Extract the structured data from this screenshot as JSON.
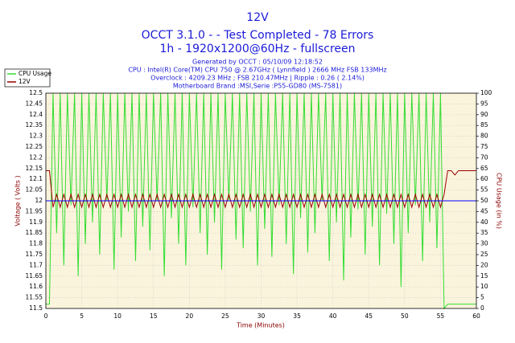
{
  "chart_data": {
    "type": "line",
    "title": "12V",
    "subtitle": [
      "OCCT 3.1.0 -  - Test Completed - 78 Errors",
      "1h - 1920x1200@60Hz - fullscreen"
    ],
    "info": [
      "Generated by OCCT : 05/10/09 12:18:52",
      "CPU : Intel(R) Core(TM) CPU 750 @ 2.67GHz ( Lynnfield ) 2666 MHz FSB 133MHz",
      "Overclock : 4209.23 MHz ; FSB 210.47MHz | Ripple : 0.26 ( 2.14%)",
      "Motherboard Brand :MSI,Serie :P55-GD80 (MS-7581)"
    ],
    "xlabel": "Time (Minutes)",
    "ylabel": "Voltage ( Volts )",
    "y2label": "CPU Usage (in %)",
    "x": [
      0,
      0.5,
      1,
      1.5,
      2,
      2.5,
      3,
      3.5,
      4,
      4.5,
      5,
      5.5,
      6,
      6.5,
      7,
      7.5,
      8,
      8.5,
      9,
      9.5,
      10,
      10.5,
      11,
      11.5,
      12,
      12.5,
      13,
      13.5,
      14,
      14.5,
      15,
      15.5,
      16,
      16.5,
      17,
      17.5,
      18,
      18.5,
      19,
      19.5,
      20,
      20.5,
      21,
      21.5,
      22,
      22.5,
      23,
      23.5,
      24,
      24.5,
      25,
      25.5,
      26,
      26.5,
      27,
      27.5,
      28,
      28.5,
      29,
      29.5,
      30,
      30.5,
      31,
      31.5,
      32,
      32.5,
      33,
      33.5,
      34,
      34.5,
      35,
      35.5,
      36,
      36.5,
      37,
      37.5,
      38,
      38.5,
      39,
      39.5,
      40,
      40.5,
      41,
      41.5,
      42,
      42.5,
      43,
      43.5,
      44,
      44.5,
      45,
      45.5,
      46,
      46.5,
      47,
      47.5,
      48,
      48.5,
      49,
      49.5,
      50,
      50.5,
      51,
      51.5,
      52,
      52.5,
      53,
      53.5,
      54,
      54.5,
      55,
      55.5,
      56,
      56.5,
      57,
      57.5,
      58,
      58.5,
      59,
      59.5,
      60
    ],
    "series": [
      {
        "name": "CPU Usage",
        "color": "#33dd33",
        "axis": "y2",
        "values": [
          2,
          2,
          100,
          35,
          100,
          20,
          100,
          48,
          100,
          15,
          100,
          30,
          100,
          40,
          100,
          25,
          100,
          50,
          100,
          18,
          100,
          33,
          100,
          45,
          100,
          22,
          100,
          38,
          100,
          27,
          100,
          50,
          100,
          15,
          100,
          42,
          100,
          30,
          100,
          20,
          100,
          47,
          100,
          35,
          100,
          25,
          100,
          40,
          100,
          18,
          100,
          50,
          100,
          32,
          100,
          28,
          100,
          45,
          100,
          20,
          100,
          37,
          100,
          24,
          100,
          48,
          100,
          30,
          100,
          16,
          100,
          42,
          100,
          26,
          100,
          35,
          100,
          50,
          100,
          22,
          100,
          40,
          100,
          13,
          100,
          33,
          100,
          46,
          100,
          25,
          100,
          38,
          100,
          20,
          100,
          44,
          100,
          30,
          100,
          10,
          100,
          35,
          100,
          48,
          100,
          22,
          100,
          40,
          100,
          28,
          100,
          0,
          2,
          2,
          2,
          2,
          2,
          2,
          2,
          2,
          2
        ]
      },
      {
        "name": "12V",
        "color": "#990000",
        "values": [
          12.14,
          12.14,
          11.97,
          12.03,
          11.97,
          12.03,
          11.97,
          12.03,
          11.97,
          12.03,
          11.97,
          12.03,
          11.97,
          12.03,
          11.97,
          12.03,
          11.97,
          12.03,
          11.97,
          12.03,
          11.97,
          12.03,
          11.97,
          12.03,
          11.97,
          12.03,
          11.97,
          12.03,
          11.97,
          12.03,
          11.97,
          12.03,
          11.97,
          12.03,
          11.97,
          12.03,
          11.97,
          12.03,
          11.97,
          12.03,
          11.97,
          12.03,
          11.97,
          12.03,
          11.97,
          12.03,
          11.97,
          12.03,
          11.97,
          12.03,
          11.97,
          12.03,
          11.97,
          12.03,
          11.97,
          12.03,
          11.97,
          12.03,
          11.97,
          12.03,
          11.97,
          12.03,
          11.97,
          12.03,
          11.97,
          12.03,
          11.97,
          12.03,
          11.97,
          12.03,
          11.97,
          12.03,
          11.97,
          12.03,
          11.97,
          12.03,
          11.97,
          12.03,
          11.97,
          12.03,
          11.97,
          12.03,
          11.97,
          12.03,
          11.97,
          12.03,
          11.97,
          12.03,
          11.97,
          12.03,
          11.97,
          12.03,
          11.97,
          12.03,
          11.97,
          12.03,
          11.97,
          12.03,
          11.97,
          12.03,
          11.97,
          12.03,
          11.97,
          12.03,
          11.97,
          12.03,
          11.97,
          12.03,
          11.97,
          12.03,
          11.97,
          12.03,
          12.14,
          12.14,
          12.12,
          12.14,
          12.14,
          12.14,
          12.14,
          12.14,
          12.14
        ]
      }
    ],
    "hline": {
      "value": 12,
      "color": "#0000ff"
    },
    "xlim": [
      0,
      60
    ],
    "xticks": [
      0,
      5,
      10,
      15,
      20,
      25,
      30,
      35,
      40,
      45,
      50,
      55,
      60
    ],
    "ylim": [
      11.5,
      12.5
    ],
    "yticks": [
      11.5,
      11.55,
      11.6,
      11.65,
      11.7,
      11.75,
      11.8,
      11.85,
      11.9,
      11.95,
      12,
      12.05,
      12.1,
      12.15,
      12.2,
      12.25,
      12.3,
      12.35,
      12.4,
      12.45,
      12.5
    ],
    "y2lim": [
      0,
      100
    ],
    "y2ticks": [
      0,
      5,
      10,
      15,
      20,
      25,
      30,
      35,
      40,
      45,
      50,
      55,
      60,
      65,
      70,
      75,
      80,
      85,
      90,
      95,
      100
    ],
    "grid": true,
    "legend": "upper left"
  }
}
